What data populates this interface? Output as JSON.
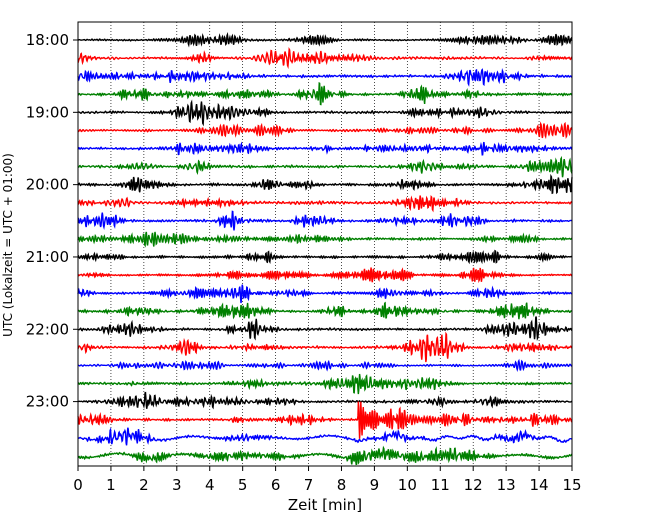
{
  "chart_data": {
    "type": "line",
    "title": "",
    "xlabel": "Zeit  [min]",
    "ylabel": "UTC (Lokalzeit = UTC + 01:00)",
    "xlim": [
      0,
      15
    ],
    "x_ticks": [
      0,
      1,
      2,
      3,
      4,
      5,
      6,
      7,
      8,
      9,
      10,
      11,
      12,
      13,
      14,
      15
    ],
    "y_tick_labels": [
      "18:00",
      "19:00",
      "20:00",
      "21:00",
      "22:00",
      "23:00"
    ],
    "traces_per_hour": 4,
    "trace_minutes_each": 15,
    "trace_colors": [
      "#000000",
      "#ff0000",
      "#0000ff",
      "#008000"
    ],
    "grid": "vertical dotted at each minute",
    "trace_count": 24,
    "event": {
      "trace_index": 21,
      "start_minute": 8.5,
      "description": ""
    }
  }
}
